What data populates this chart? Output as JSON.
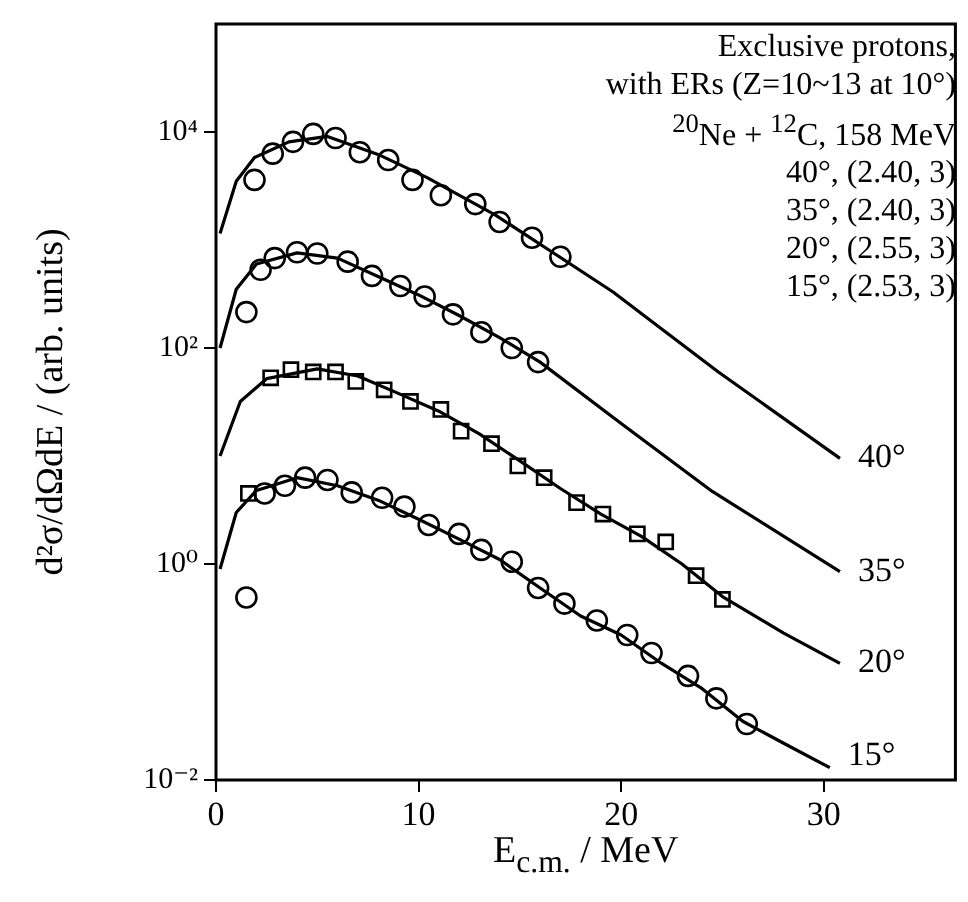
{
  "chart_data": {
    "type": "scatter",
    "xlabel": "E$_{c.m.}$ / MeV",
    "ylabel": "d²σ/dΩdE / (arb. units)",
    "xlim": [
      0,
      36.5
    ],
    "ylim": [
      0.01,
      100000
    ],
    "xticks": [
      0,
      10,
      20,
      30
    ],
    "yticks": [
      {
        "value": 0.01,
        "label": "10⁻²"
      },
      {
        "value": 1,
        "label": "10⁰"
      },
      {
        "value": 100,
        "label": "10²"
      },
      {
        "value": 10000,
        "label": "10⁴"
      }
    ],
    "log": "y",
    "annotations": [
      "Exclusive protons,",
      "with ERs (Z=10~13 at 10°)",
      "$^{20}$Ne + $^{12}$C, 158 MeV",
      "40°, (2.40, 3)",
      "35°, (2.40, 3)",
      "20°, (2.55, 3)",
      "15°, (2.53, 3)"
    ],
    "series": [
      {
        "marker": "circle",
        "color": "#000000",
        "x": [
          1.9,
          2.8,
          3.8,
          4.8,
          5.9,
          7.1,
          8.5,
          9.7,
          11.1,
          12.8,
          14.0,
          15.6,
          17.0
        ],
        "values": [
          3600,
          6300,
          8100,
          9600,
          8800,
          6500,
          5500,
          3600,
          2600,
          2150,
          1470,
          1050,
          700
        ]
      },
      {
        "type": "line",
        "name": "40°",
        "marker": "none",
        "color": "#000000",
        "x": [
          0.2,
          1,
          1.9,
          3.6,
          5.5,
          8,
          10.4,
          13.8,
          16.7,
          19.6,
          22,
          24.8,
          30.8
        ],
        "values": [
          1150,
          3500,
          5800,
          8100,
          9100,
          6200,
          3800,
          1700,
          750,
          330,
          150,
          60,
          9.5
        ]
      },
      {
        "marker": "circle",
        "color": "#000000",
        "x": [
          1.5,
          2.2,
          2.9,
          4.0,
          5.0,
          6.5,
          7.7,
          9.1,
          10.3,
          11.7,
          13.1,
          14.6,
          15.9
        ],
        "values": [
          215,
          530,
          680,
          770,
          750,
          630,
          465,
          375,
          300,
          205,
          140,
          100,
          74
        ]
      },
      {
        "type": "line",
        "name": "35°",
        "marker": "none",
        "color": "#000000",
        "x": [
          0.2,
          1,
          2,
          4,
          6,
          8,
          10,
          12,
          14,
          16,
          20,
          24.5,
          30.8
        ],
        "values": [
          100,
          350,
          600,
          760,
          680,
          460,
          310,
          200,
          125,
          74,
          20,
          4.7,
          0.85
        ]
      },
      {
        "marker": "square",
        "color": "#000000",
        "x": [
          1.6,
          2.7,
          3.7,
          4.8,
          5.9,
          6.9,
          8.3,
          9.6,
          11.1,
          12.1,
          13.6,
          14.9,
          16.2,
          17.8,
          19.1,
          20.8,
          22.2,
          23.7,
          25.0
        ],
        "values": [
          4.5,
          53,
          63,
          60,
          60,
          49,
          41,
          32,
          27,
          17,
          13,
          8.1,
          6.3,
          3.7,
          2.9,
          1.9,
          1.6,
          0.78,
          0.47
        ]
      },
      {
        "type": "line",
        "name": "20°",
        "marker": "none",
        "color": "#000000",
        "x": [
          0.2,
          1.2,
          2.5,
          5,
          7,
          9,
          11,
          13,
          15,
          17,
          19,
          21,
          23,
          25,
          28,
          30.8
        ],
        "values": [
          10,
          32,
          52,
          64,
          55,
          38,
          26,
          16,
          9,
          5,
          2.9,
          1.8,
          1,
          0.5,
          0.23,
          0.12
        ]
      },
      {
        "marker": "circle",
        "color": "#000000",
        "x": [
          1.5,
          2.4,
          3.4,
          4.4,
          5.5,
          6.7,
          8.2,
          9.3,
          10.5,
          12.0,
          13.1,
          14.6,
          15.9,
          17.2,
          18.8,
          20.3,
          21.5,
          23.3,
          24.7,
          26.2
        ],
        "values": [
          0.49,
          4.5,
          5.3,
          6.3,
          6.0,
          4.6,
          4.1,
          3.4,
          2.3,
          1.9,
          1.35,
          1.05,
          0.6,
          0.43,
          0.3,
          0.22,
          0.15,
          0.092,
          0.057,
          0.033
        ]
      },
      {
        "type": "line",
        "name": "15°",
        "marker": "none",
        "color": "#000000",
        "x": [
          0.2,
          1,
          2,
          4,
          6,
          8,
          10,
          12,
          14,
          16,
          18,
          20,
          22,
          24,
          26,
          28,
          30.3
        ],
        "values": [
          0.9,
          3,
          4.8,
          6.3,
          5.3,
          3.9,
          2.6,
          1.7,
          1.1,
          0.6,
          0.33,
          0.22,
          0.12,
          0.07,
          0.035,
          0.022,
          0.013
        ]
      }
    ]
  }
}
